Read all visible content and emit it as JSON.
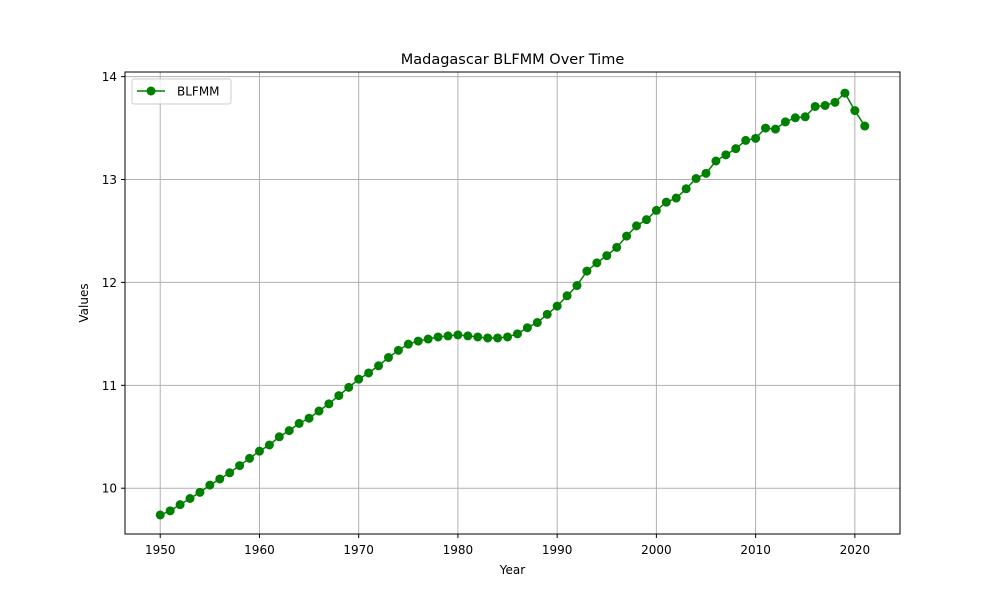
{
  "chart_data": {
    "type": "line",
    "title": "Madagascar BLFMM Over Time",
    "xlabel": "Year",
    "ylabel": "Values",
    "xlim": [
      1946.45,
      2024.55
    ],
    "ylim": [
      9.555,
      14.045
    ],
    "xticks": [
      1950,
      1960,
      1970,
      1980,
      1990,
      2000,
      2010,
      2020
    ],
    "yticks": [
      10,
      11,
      12,
      13,
      14
    ],
    "grid": true,
    "legend_position": "upper-left",
    "series": [
      {
        "name": "BLFMM",
        "color": "#008000",
        "marker": "circle",
        "x": [
          1950,
          1951,
          1952,
          1953,
          1954,
          1955,
          1956,
          1957,
          1958,
          1959,
          1960,
          1961,
          1962,
          1963,
          1964,
          1965,
          1966,
          1967,
          1968,
          1969,
          1970,
          1971,
          1972,
          1973,
          1974,
          1975,
          1976,
          1977,
          1978,
          1979,
          1980,
          1981,
          1982,
          1983,
          1984,
          1985,
          1986,
          1987,
          1988,
          1989,
          1990,
          1991,
          1992,
          1993,
          1994,
          1995,
          1996,
          1997,
          1998,
          1999,
          2000,
          2001,
          2002,
          2003,
          2004,
          2005,
          2006,
          2007,
          2008,
          2009,
          2010,
          2011,
          2012,
          2013,
          2014,
          2015,
          2016,
          2017,
          2018,
          2019,
          2020,
          2021
        ],
        "y": [
          9.74,
          9.78,
          9.84,
          9.9,
          9.96,
          10.03,
          10.09,
          10.15,
          10.22,
          10.29,
          10.36,
          10.42,
          10.5,
          10.56,
          10.63,
          10.68,
          10.75,
          10.82,
          10.9,
          10.98,
          11.06,
          11.12,
          11.19,
          11.27,
          11.34,
          11.4,
          11.43,
          11.45,
          11.47,
          11.48,
          11.49,
          11.48,
          11.47,
          11.46,
          11.46,
          11.47,
          11.5,
          11.56,
          11.61,
          11.69,
          11.77,
          11.87,
          11.97,
          12.11,
          12.19,
          12.26,
          12.34,
          12.45,
          12.55,
          12.61,
          12.7,
          12.78,
          12.82,
          12.91,
          13.01,
          13.06,
          13.18,
          13.24,
          13.3,
          13.38,
          13.4,
          13.5,
          13.49,
          13.56,
          13.6,
          13.61,
          13.71,
          13.72,
          13.75,
          13.84,
          13.67,
          13.52
        ]
      }
    ]
  }
}
